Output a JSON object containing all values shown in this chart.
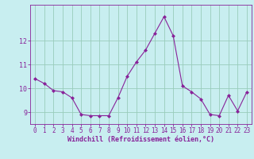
{
  "x": [
    0,
    1,
    2,
    3,
    4,
    5,
    6,
    7,
    8,
    9,
    10,
    11,
    12,
    13,
    14,
    15,
    16,
    17,
    18,
    19,
    20,
    21,
    22,
    23
  ],
  "y": [
    10.4,
    10.2,
    9.9,
    9.85,
    9.6,
    8.9,
    8.85,
    8.85,
    8.85,
    9.6,
    10.5,
    11.1,
    11.6,
    12.3,
    13.0,
    12.2,
    10.1,
    9.85,
    9.55,
    8.9,
    8.85,
    9.7,
    9.05,
    9.85
  ],
  "line_color": "#882299",
  "marker": "D",
  "marker_size": 2,
  "background_color": "#c8eef0",
  "grid_color": "#99ccbb",
  "xlabel": "Windchill (Refroidissement éolien,°C)",
  "xlabel_color": "#882299",
  "tick_color": "#882299",
  "ylim": [
    8.5,
    13.5
  ],
  "yticks": [
    9,
    10,
    11,
    12
  ],
  "xticks": [
    0,
    1,
    2,
    3,
    4,
    5,
    6,
    7,
    8,
    9,
    10,
    11,
    12,
    13,
    14,
    15,
    16,
    17,
    18,
    19,
    20,
    21,
    22,
    23
  ],
  "spine_color": "#882299"
}
